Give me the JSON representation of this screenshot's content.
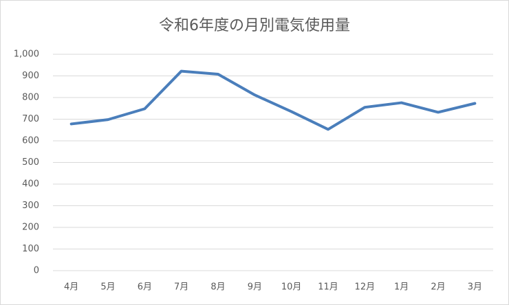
{
  "chart_data": {
    "type": "line",
    "title": "令和6年度の月別電気使用量",
    "categories": [
      "4月",
      "5月",
      "6月",
      "7月",
      "8月",
      "9月",
      "10月",
      "11月",
      "12月",
      "1月",
      "2月",
      "3月"
    ],
    "series": [
      {
        "name": "電気使用量",
        "color": "#4a7ebb",
        "values": [
          678,
          698,
          748,
          922,
          908,
          812,
          735,
          653,
          755,
          776,
          732,
          773
        ]
      }
    ],
    "ylim": [
      0,
      1000
    ],
    "yticks": [
      0,
      100,
      200,
      300,
      400,
      500,
      600,
      700,
      800,
      900,
      {
        "value": 1000,
        "label": "1,000"
      }
    ],
    "grid": true
  }
}
